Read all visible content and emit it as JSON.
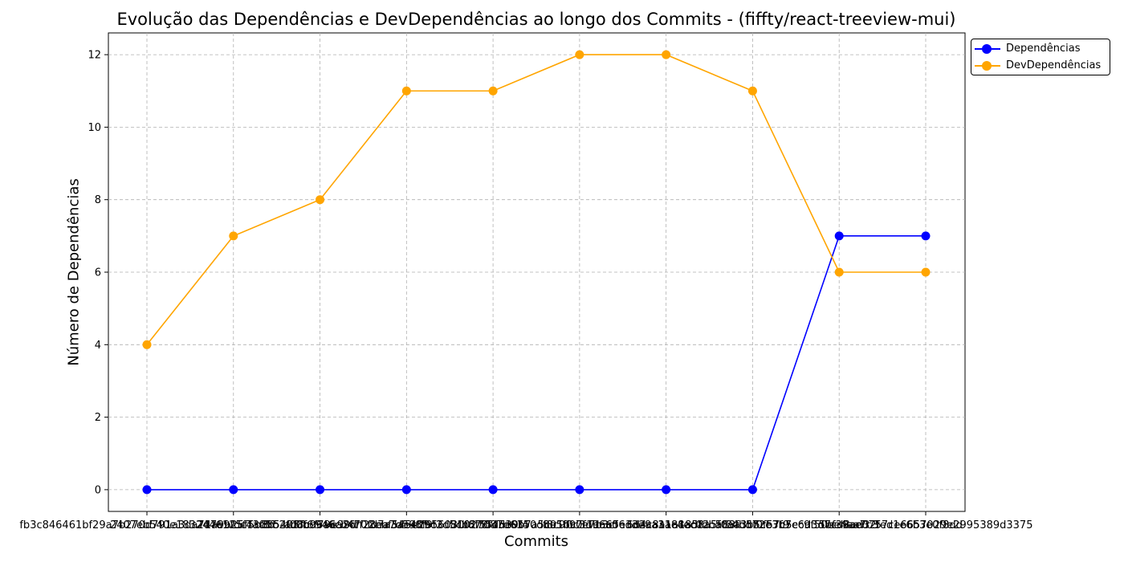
{
  "chart_data": {
    "type": "line",
    "title": "Evolução das Dependências e DevDependências ao longo dos Commits - (fiffty/react-treeview-mui)",
    "xlabel": "Commits",
    "ylabel": "Número de Dependências",
    "categories": [
      "fb3c846461bf29a7b270d791a3da71a9b25f5b8b",
      "2407eb540e1832446125f43f8f5405ff6f79e99d",
      "2d7e9fdc7ad5b2f00bc946cb470fd7a3ae4ff9c3",
      "ad8c96a6a26ff28ea7d598f9f2d5cb8f55dd39f4",
      "2ebf545e2b56030fd78f45e0b7a5c91bc7e7b3cf",
      "81027087d6350d8e5f0c3d96a06d3e9a31c4ec02",
      "f8c9f90f1da65e3d2aa1a88ad8a5f0aa3b5cb7f9",
      "6d4c8a1a185fdb5f34bd72e3b7ec9f50ee4aa7c3",
      "a83fd5f0f57c5c6d3d7cd8ad32fed1e6b3e0f8dd",
      "5bf39ae0757ce6657029e2995389d3375"
    ],
    "series": [
      {
        "name": "Dependências",
        "color": "#0000ff",
        "values": [
          0,
          0,
          0,
          0,
          0,
          0,
          0,
          0,
          7,
          7
        ]
      },
      {
        "name": "DevDependências",
        "color": "#ffa500",
        "values": [
          4,
          7,
          8,
          11,
          11,
          12,
          12,
          11,
          6,
          6
        ]
      }
    ],
    "ylim": [
      -0.6,
      12.6
    ],
    "yticks": [
      0,
      2,
      4,
      6,
      8,
      10,
      12
    ],
    "grid": true,
    "grid_style": "dashed",
    "legend_position": "outside-top-right"
  }
}
